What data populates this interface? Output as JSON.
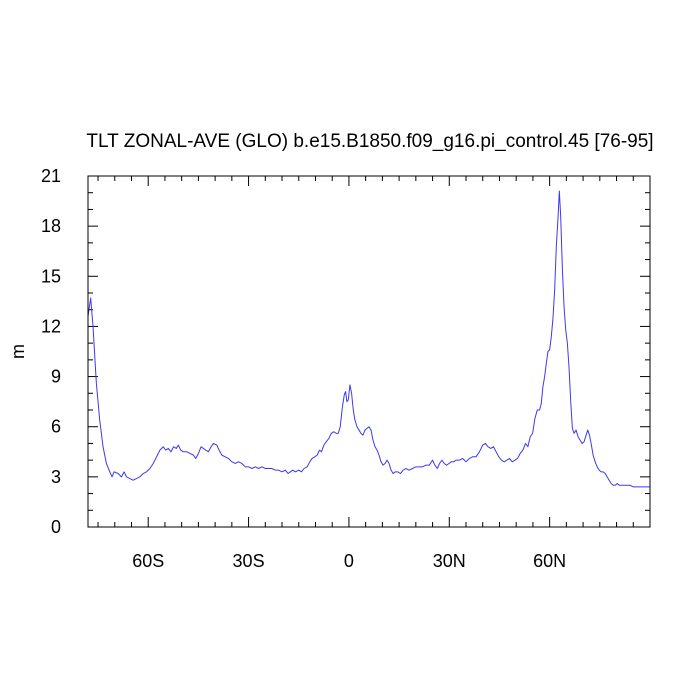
{
  "chart_data": {
    "type": "line",
    "title": "TLT ZONAL-AVE (GLO) b.e15.B1850.f09_g16.pi_control.45 [76-95]",
    "xlabel": "",
    "ylabel": "m",
    "xlim": [
      -78,
      90
    ],
    "ylim": [
      0,
      21
    ],
    "grid": false,
    "legend": "none",
    "x_ticks": [
      -60,
      -30,
      0,
      30,
      60
    ],
    "x_tick_labels": [
      "60S",
      "30S",
      "0",
      "30N",
      "60N"
    ],
    "y_ticks": [
      0,
      3,
      6,
      9,
      12,
      15,
      18,
      21
    ],
    "y_tick_labels": [
      "0",
      "3",
      "6",
      "9",
      "12",
      "15",
      "18",
      "21"
    ],
    "series": [
      {
        "color": "#3a3af0",
        "points": [
          [
            -78,
            12.6
          ],
          [
            -77.2,
            13.7
          ],
          [
            -76.5,
            12.0
          ],
          [
            -75.5,
            8.6
          ],
          [
            -74.5,
            6.4
          ],
          [
            -73.5,
            4.8
          ],
          [
            -72.5,
            3.8
          ],
          [
            -71.5,
            3.3
          ],
          [
            -70.8,
            3.0
          ],
          [
            -70.2,
            3.3
          ],
          [
            -69,
            3.2
          ],
          [
            -68,
            3.0
          ],
          [
            -67.2,
            3.3
          ],
          [
            -66.5,
            3.0
          ],
          [
            -65.5,
            2.9
          ],
          [
            -64.5,
            2.8
          ],
          [
            -63.5,
            2.9
          ],
          [
            -62.5,
            3.0
          ],
          [
            -61.5,
            3.2
          ],
          [
            -60.5,
            3.3
          ],
          [
            -59.5,
            3.5
          ],
          [
            -58.5,
            3.8
          ],
          [
            -57.5,
            4.2
          ],
          [
            -56.5,
            4.6
          ],
          [
            -55.5,
            4.8
          ],
          [
            -54.8,
            4.6
          ],
          [
            -54,
            4.7
          ],
          [
            -53.2,
            4.5
          ],
          [
            -52.4,
            4.8
          ],
          [
            -51.6,
            4.7
          ],
          [
            -51,
            4.9
          ],
          [
            -50.3,
            4.6
          ],
          [
            -49.5,
            4.5
          ],
          [
            -48.5,
            4.5
          ],
          [
            -47.5,
            4.4
          ],
          [
            -46.5,
            4.3
          ],
          [
            -45.8,
            4.1
          ],
          [
            -45,
            4.4
          ],
          [
            -44.2,
            4.8
          ],
          [
            -43.5,
            4.7
          ],
          [
            -42.8,
            4.6
          ],
          [
            -42,
            4.5
          ],
          [
            -41.2,
            4.8
          ],
          [
            -40.5,
            5.0
          ],
          [
            -39.5,
            4.9
          ],
          [
            -38.8,
            4.6
          ],
          [
            -38,
            4.3
          ],
          [
            -37,
            4.2
          ],
          [
            -36,
            4.1
          ],
          [
            -35,
            3.9
          ],
          [
            -34,
            3.8
          ],
          [
            -33,
            3.9
          ],
          [
            -32,
            3.8
          ],
          [
            -31,
            3.6
          ],
          [
            -30,
            3.6
          ],
          [
            -29,
            3.5
          ],
          [
            -28,
            3.6
          ],
          [
            -27,
            3.5
          ],
          [
            -26,
            3.6
          ],
          [
            -25,
            3.5
          ],
          [
            -24,
            3.5
          ],
          [
            -23,
            3.5
          ],
          [
            -22,
            3.4
          ],
          [
            -21,
            3.4
          ],
          [
            -20,
            3.3
          ],
          [
            -19,
            3.4
          ],
          [
            -18.2,
            3.2
          ],
          [
            -17.5,
            3.3
          ],
          [
            -16.8,
            3.4
          ],
          [
            -16,
            3.3
          ],
          [
            -15,
            3.4
          ],
          [
            -14.2,
            3.3
          ],
          [
            -13.4,
            3.5
          ],
          [
            -12.5,
            3.6
          ],
          [
            -11.7,
            3.9
          ],
          [
            -11,
            4.1
          ],
          [
            -10.2,
            4.2
          ],
          [
            -9.5,
            4.3
          ],
          [
            -8.8,
            4.6
          ],
          [
            -8.2,
            4.5
          ],
          [
            -7.5,
            4.9
          ],
          [
            -6.8,
            5.1
          ],
          [
            -6,
            5.3
          ],
          [
            -5.3,
            5.6
          ],
          [
            -4.5,
            5.7
          ],
          [
            -3.8,
            5.6
          ],
          [
            -3.2,
            5.6
          ],
          [
            -2.6,
            6.0
          ],
          [
            -2,
            7.1
          ],
          [
            -1.4,
            7.9
          ],
          [
            -1,
            8.1
          ],
          [
            -0.6,
            7.5
          ],
          [
            -0.2,
            7.6
          ],
          [
            0.3,
            8.5
          ],
          [
            0.8,
            8.0
          ],
          [
            1.3,
            7.0
          ],
          [
            1.8,
            6.4
          ],
          [
            2.4,
            6.0
          ],
          [
            3,
            5.8
          ],
          [
            3.6,
            5.6
          ],
          [
            4.2,
            5.5
          ],
          [
            4.8,
            5.8
          ],
          [
            5.4,
            5.9
          ],
          [
            6,
            6.0
          ],
          [
            6.6,
            5.8
          ],
          [
            7.2,
            5.2
          ],
          [
            7.8,
            4.8
          ],
          [
            8.4,
            4.6
          ],
          [
            9,
            4.3
          ],
          [
            9.6,
            3.9
          ],
          [
            10.2,
            3.7
          ],
          [
            10.8,
            3.8
          ],
          [
            11.4,
            4.0
          ],
          [
            12,
            3.8
          ],
          [
            12.6,
            3.4
          ],
          [
            13.2,
            3.2
          ],
          [
            13.8,
            3.3
          ],
          [
            14.6,
            3.3
          ],
          [
            15.4,
            3.2
          ],
          [
            16.2,
            3.4
          ],
          [
            17,
            3.5
          ],
          [
            18,
            3.4
          ],
          [
            19,
            3.5
          ],
          [
            20,
            3.6
          ],
          [
            21,
            3.6
          ],
          [
            22,
            3.6
          ],
          [
            23,
            3.7
          ],
          [
            24,
            3.7
          ],
          [
            25,
            4.0
          ],
          [
            25.7,
            3.7
          ],
          [
            26.4,
            3.5
          ],
          [
            27.1,
            3.8
          ],
          [
            27.8,
            4.0
          ],
          [
            28.5,
            3.8
          ],
          [
            29.2,
            3.7
          ],
          [
            29.9,
            3.8
          ],
          [
            30.6,
            3.9
          ],
          [
            31.3,
            3.9
          ],
          [
            32,
            4.0
          ],
          [
            33,
            4.0
          ],
          [
            34,
            4.1
          ],
          [
            35,
            3.9
          ],
          [
            36,
            4.1
          ],
          [
            37,
            4.2
          ],
          [
            38,
            4.2
          ],
          [
            39,
            4.5
          ],
          [
            40,
            4.9
          ],
          [
            40.8,
            5.0
          ],
          [
            41.6,
            4.8
          ],
          [
            42.4,
            4.7
          ],
          [
            43.2,
            4.8
          ],
          [
            44,
            4.5
          ],
          [
            44.8,
            4.2
          ],
          [
            45.6,
            4.0
          ],
          [
            46.4,
            3.9
          ],
          [
            47.2,
            4.0
          ],
          [
            48,
            4.1
          ],
          [
            48.8,
            3.9
          ],
          [
            49.6,
            4.0
          ],
          [
            50.4,
            4.1
          ],
          [
            51.2,
            4.4
          ],
          [
            52,
            4.6
          ],
          [
            52.8,
            5.0
          ],
          [
            53.5,
            4.8
          ],
          [
            54.2,
            5.4
          ],
          [
            54.9,
            5.6
          ],
          [
            55.6,
            6.5
          ],
          [
            56.3,
            7.0
          ],
          [
            57,
            7.0
          ],
          [
            57.5,
            7.4
          ],
          [
            58,
            8.4
          ],
          [
            58.5,
            9.0
          ],
          [
            59,
            9.8
          ],
          [
            59.5,
            10.5
          ],
          [
            60,
            10.6
          ],
          [
            60.5,
            11.4
          ],
          [
            61,
            12.5
          ],
          [
            61.5,
            14.2
          ],
          [
            62,
            16.8
          ],
          [
            62.5,
            18.5
          ],
          [
            62.9,
            20.1
          ],
          [
            63.3,
            18.6
          ],
          [
            63.8,
            15.5
          ],
          [
            64.3,
            13.2
          ],
          [
            64.8,
            11.8
          ],
          [
            65.3,
            11.0
          ],
          [
            65.8,
            9.5
          ],
          [
            66.3,
            7.5
          ],
          [
            66.8,
            5.9
          ],
          [
            67.3,
            5.6
          ],
          [
            67.9,
            5.8
          ],
          [
            68.5,
            5.4
          ],
          [
            69.1,
            5.2
          ],
          [
            69.7,
            5.0
          ],
          [
            70.3,
            5.1
          ],
          [
            70.9,
            5.5
          ],
          [
            71.4,
            5.8
          ],
          [
            71.9,
            5.5
          ],
          [
            72.4,
            5.0
          ],
          [
            73,
            4.3
          ],
          [
            73.6,
            3.9
          ],
          [
            74.2,
            3.6
          ],
          [
            74.8,
            3.4
          ],
          [
            75.4,
            3.3
          ],
          [
            76,
            3.3
          ],
          [
            76.6,
            3.2
          ],
          [
            77.2,
            3.0
          ],
          [
            77.8,
            2.8
          ],
          [
            78.4,
            2.6
          ],
          [
            79,
            2.5
          ],
          [
            79.6,
            2.5
          ],
          [
            80.2,
            2.6
          ],
          [
            80.8,
            2.5
          ],
          [
            81.4,
            2.5
          ],
          [
            82.2,
            2.5
          ],
          [
            83,
            2.5
          ],
          [
            84,
            2.5
          ],
          [
            85,
            2.4
          ],
          [
            86,
            2.4
          ],
          [
            87,
            2.4
          ],
          [
            88,
            2.4
          ],
          [
            89,
            2.4
          ],
          [
            90,
            2.4
          ]
        ]
      }
    ]
  }
}
